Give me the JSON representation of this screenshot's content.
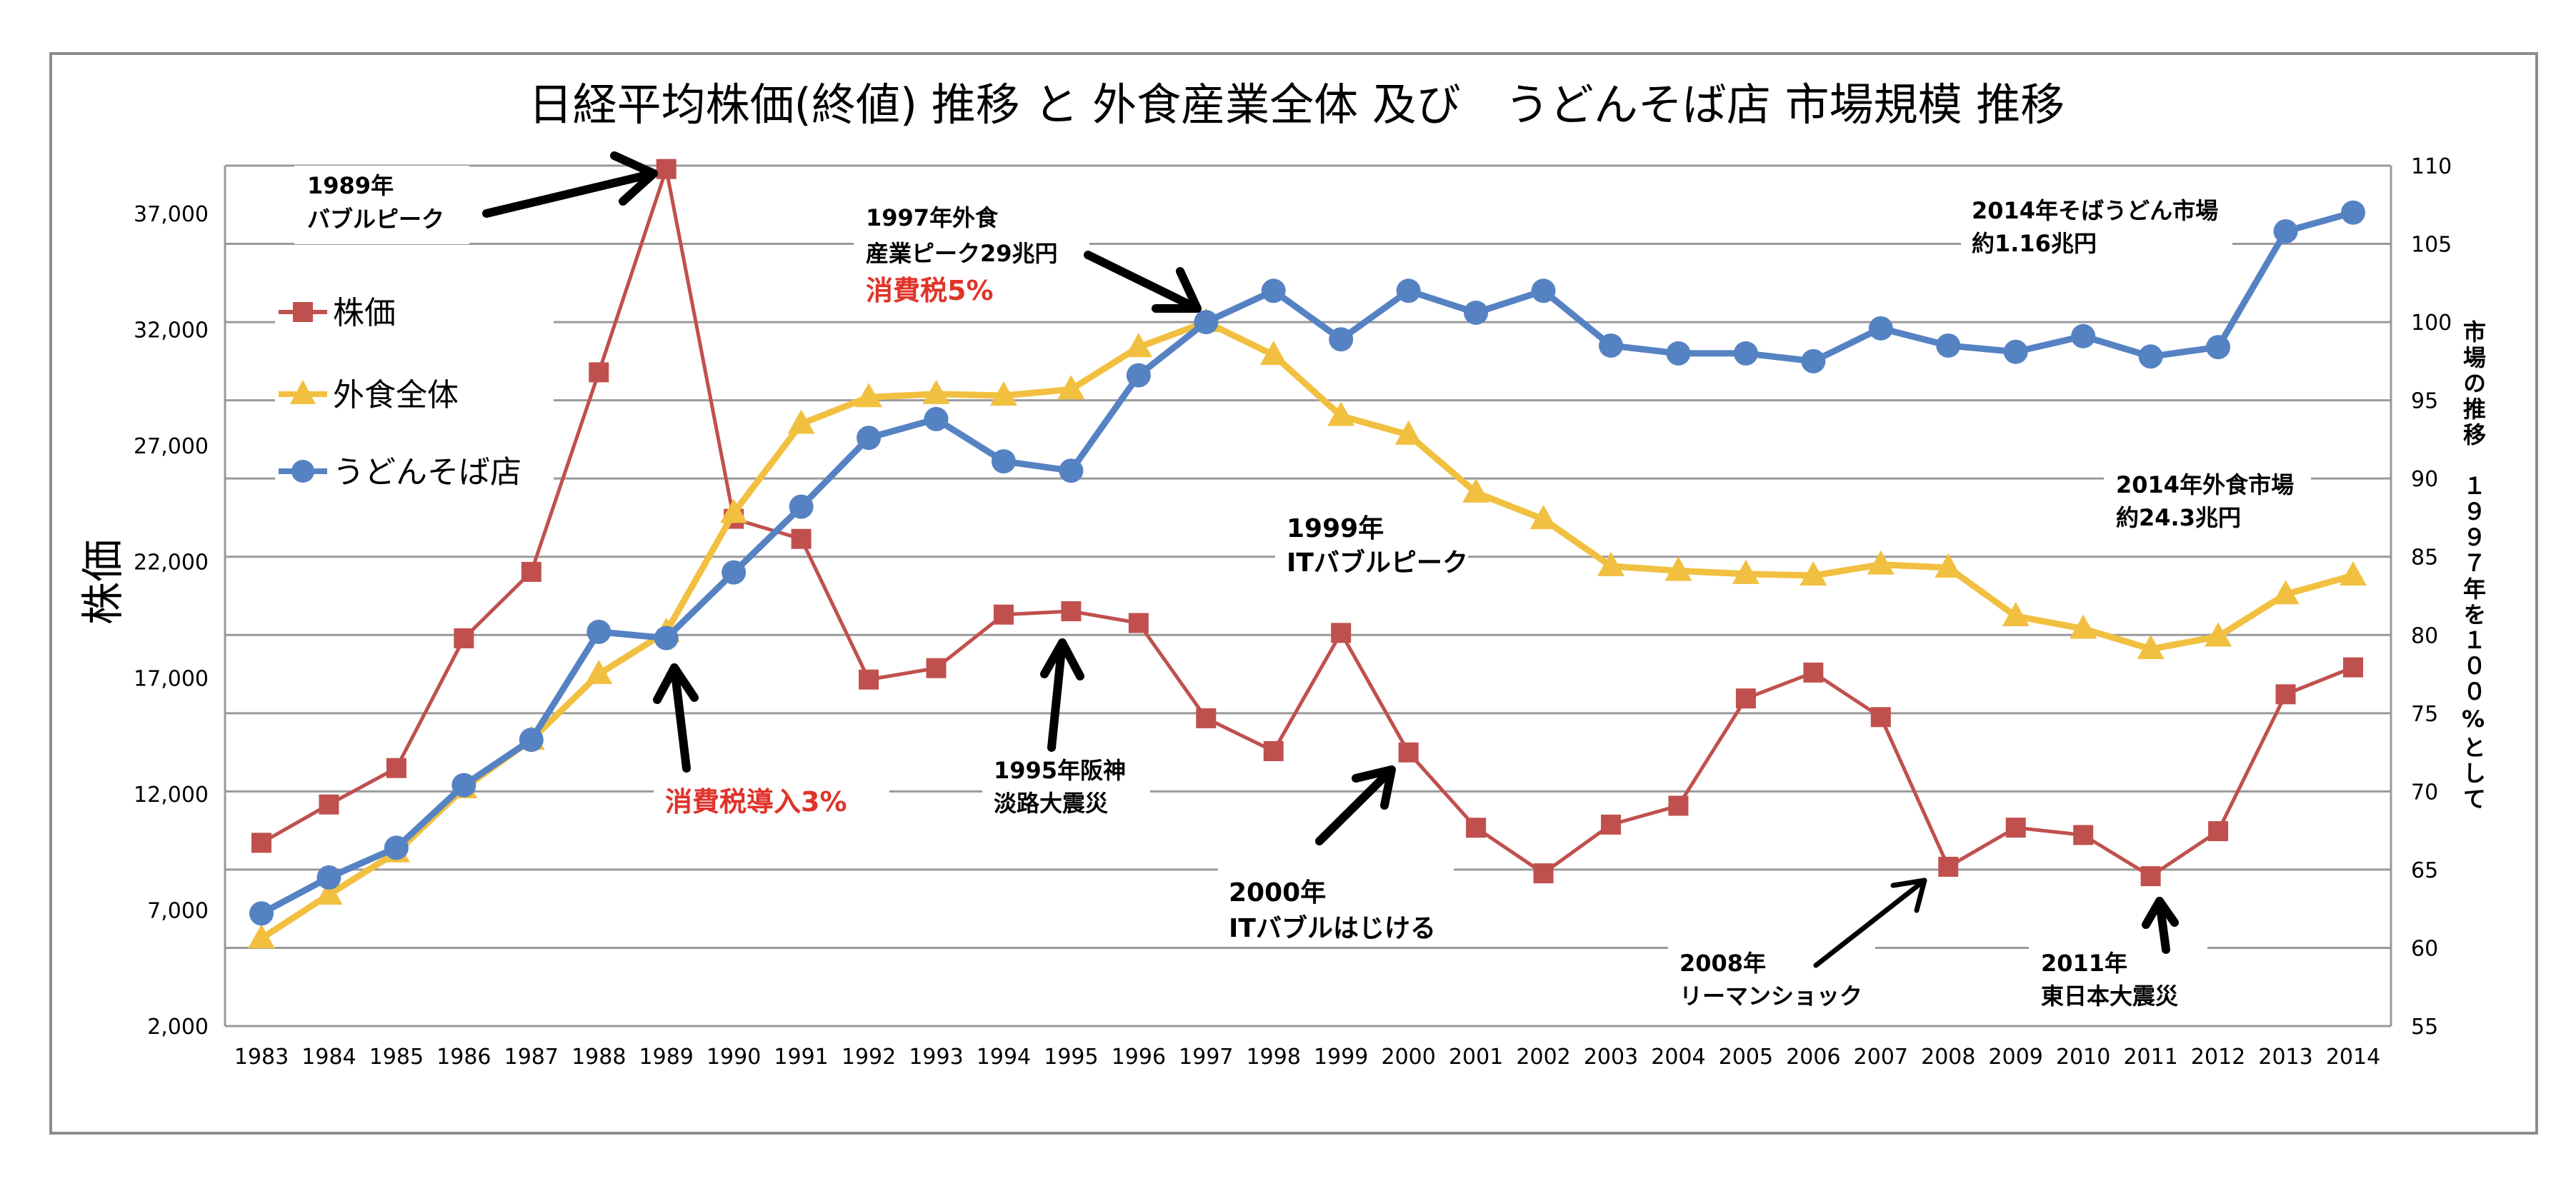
{
  "chart_data": {
    "type": "line",
    "title": "日経平均株価(終値) 推移 と 外食産業全体 及び　うどんそば店 市場規模 推移",
    "ylabel_left": "株価",
    "ylabel_right": "市場の推移　１９９７年を１００%として",
    "x": [
      "1983",
      "1984",
      "1985",
      "1986",
      "1987",
      "1988",
      "1989",
      "1990",
      "1991",
      "1992",
      "1993",
      "1994",
      "1995",
      "1996",
      "1997",
      "1998",
      "1999",
      "2000",
      "2001",
      "2002",
      "2003",
      "2004",
      "2005",
      "2006",
      "2007",
      "2008",
      "2009",
      "2010",
      "2011",
      "2012",
      "2013",
      "2014"
    ],
    "ylim_left": [
      2000,
      39000
    ],
    "yticks_left": [
      "2,000",
      "7,000",
      "12,000",
      "17,000",
      "22,000",
      "27,000",
      "32,000",
      "37,000"
    ],
    "yticks_left_values": [
      2000,
      7000,
      12000,
      17000,
      22000,
      27000,
      32000,
      37000
    ],
    "ylim_right": [
      55,
      110
    ],
    "yticks_right": [
      "55",
      "60",
      "65",
      "70",
      "75",
      "80",
      "85",
      "90",
      "95",
      "100",
      "105",
      "110"
    ],
    "yticks_right_values": [
      55,
      60,
      65,
      70,
      75,
      80,
      85,
      90,
      95,
      100,
      105,
      110
    ],
    "grid": true,
    "legend_position": "left",
    "series": [
      {
        "name": "株価",
        "axis": "left",
        "color": "#C0504D",
        "marker": "square",
        "values": [
          9894,
          11543,
          13113,
          18701,
          21564,
          30159,
          38916,
          23849,
          22984,
          16925,
          17417,
          19723,
          19868,
          19361,
          15259,
          13842,
          18934,
          13786,
          10543,
          8579,
          10677,
          11489,
          16111,
          17226,
          15308,
          8860,
          10546,
          10229,
          8455,
          10395,
          16291,
          17451
        ]
      },
      {
        "name": "外食全体",
        "axis": "right",
        "color": "#F2C040",
        "marker": "triangle",
        "values": [
          60.6,
          63.4,
          66.1,
          70.2,
          73.3,
          77.5,
          80.2,
          87.8,
          93.5,
          95.2,
          95.4,
          95.3,
          95.7,
          98.4,
          100.0,
          97.9,
          94.0,
          92.8,
          89.1,
          87.4,
          84.4,
          84.1,
          83.9,
          83.8,
          84.5,
          84.3,
          81.2,
          80.4,
          79.1,
          79.9,
          82.6,
          83.8
        ]
      },
      {
        "name": "うどんそば店",
        "axis": "right",
        "color": "#5582C2",
        "marker": "circle",
        "values": [
          62.2,
          64.5,
          66.4,
          70.4,
          73.3,
          80.2,
          79.8,
          84.0,
          88.2,
          92.6,
          93.8,
          91.1,
          90.5,
          96.6,
          100.0,
          102.0,
          98.9,
          102.0,
          100.6,
          102.0,
          98.5,
          98.0,
          98.0,
          97.5,
          99.6,
          98.5,
          98.1,
          99.1,
          97.8,
          98.4,
          105.8,
          107.0
        ]
      }
    ],
    "annotations": [
      {
        "id": "bubble-1989",
        "lines": [
          "1989年",
          "バブルピーク"
        ],
        "color": "#000000",
        "year": "1989"
      },
      {
        "id": "peak-1997",
        "lines": [
          "1997年外食",
          "産業ピーク29兆円"
        ],
        "color": "#000000",
        "year": "1997"
      },
      {
        "id": "tax-1997",
        "lines": [
          "消費税5%"
        ],
        "color": "#E0332A"
      },
      {
        "id": "soba-2014",
        "lines": [
          "2014年そばうどん市場",
          "約1.16兆円"
        ],
        "color": "#000000"
      },
      {
        "id": "gaishoku-2014",
        "lines": [
          "2014年外食市場",
          "約24.3兆円"
        ],
        "color": "#000000"
      },
      {
        "id": "it-1999",
        "lines": [
          "1999年",
          "ITバブルピーク"
        ],
        "color": "#000000"
      },
      {
        "id": "tax-1989",
        "lines": [
          "消費税導入3%"
        ],
        "color": "#E0332A",
        "year": "1989"
      },
      {
        "id": "quake-1995",
        "lines": [
          "1995年阪神",
          "淡路大震災"
        ],
        "color": "#000000",
        "year": "1995"
      },
      {
        "id": "it-2000",
        "lines": [
          "2000年",
          "ITバブルはじける"
        ],
        "color": "#000000",
        "year": "2000"
      },
      {
        "id": "lehman-2008",
        "lines": [
          "2008年",
          "リーマンショック"
        ],
        "color": "#000000",
        "year": "2008"
      },
      {
        "id": "quake-2011",
        "lines": [
          "2011年",
          "東日本大震災"
        ],
        "color": "#000000",
        "year": "2011"
      }
    ]
  }
}
